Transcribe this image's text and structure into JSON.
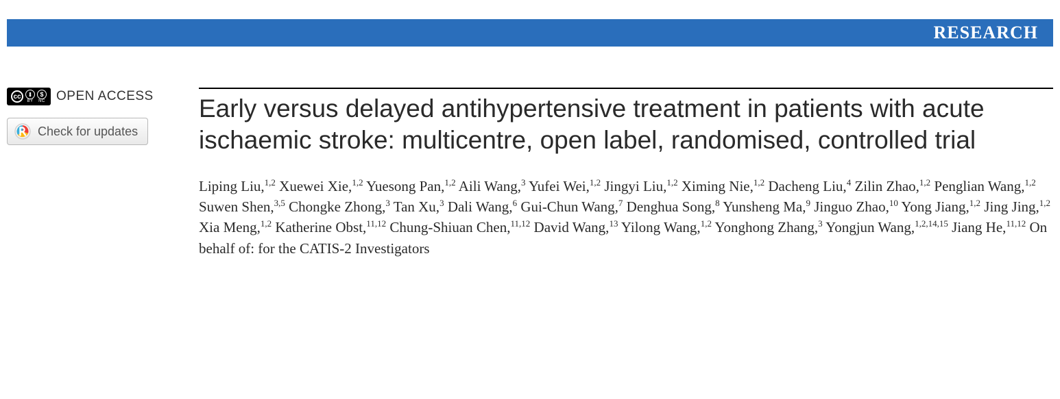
{
  "banner": {
    "label": "RESEARCH",
    "bg_color": "#2a6ebb",
    "text_color": "#ffffff"
  },
  "left": {
    "open_access_label": "OPEN ACCESS",
    "cc_by": "BY",
    "cc_nc": "NC",
    "updates_label": "Check for updates"
  },
  "article": {
    "title": "Early versus delayed antihypertensive treatment in patients with acute ischaemic stroke: multicentre, open label, randomised, controlled trial",
    "authors": [
      {
        "name": "Liping Liu",
        "aff": "1,2"
      },
      {
        "name": "Xuewei Xie",
        "aff": "1,2"
      },
      {
        "name": "Yuesong Pan",
        "aff": "1,2"
      },
      {
        "name": "Aili Wang",
        "aff": "3"
      },
      {
        "name": "Yufei Wei",
        "aff": "1,2"
      },
      {
        "name": "Jingyi Liu",
        "aff": "1,2"
      },
      {
        "name": "Ximing Nie",
        "aff": "1,2"
      },
      {
        "name": "Dacheng Liu",
        "aff": "4"
      },
      {
        "name": "Zilin Zhao",
        "aff": "1,2"
      },
      {
        "name": "Penglian Wang",
        "aff": "1,2"
      },
      {
        "name": "Suwen Shen",
        "aff": "3,5"
      },
      {
        "name": "Chongke Zhong",
        "aff": "3"
      },
      {
        "name": "Tan Xu",
        "aff": "3"
      },
      {
        "name": "Dali Wang",
        "aff": "6"
      },
      {
        "name": "Gui-Chun Wang",
        "aff": "7"
      },
      {
        "name": "Denghua Song",
        "aff": "8"
      },
      {
        "name": "Yunsheng Ma",
        "aff": "9"
      },
      {
        "name": "Jinguo Zhao",
        "aff": "10"
      },
      {
        "name": "Yong Jiang",
        "aff": "1,2"
      },
      {
        "name": "Jing Jing",
        "aff": "1,2"
      },
      {
        "name": "Xia Meng",
        "aff": "1,2"
      },
      {
        "name": "Katherine Obst",
        "aff": "11,12"
      },
      {
        "name": "Chung-Shiuan Chen",
        "aff": "11,12"
      },
      {
        "name": "David Wang",
        "aff": "13"
      },
      {
        "name": "Yilong Wang",
        "aff": "1,2"
      },
      {
        "name": "Yonghong Zhang",
        "aff": "3"
      },
      {
        "name": "Yongjun Wang",
        "aff": "1,2,14,15"
      },
      {
        "name": "Jiang He",
        "aff": "11,12"
      }
    ],
    "behalf_text": "On behalf of: for the CATIS-2 Investigators"
  },
  "colors": {
    "title_color": "#2a2a2a",
    "body_text_color": "#2a2a2a",
    "rule_color": "#000000",
    "updates_border": "#b8b8b8"
  }
}
